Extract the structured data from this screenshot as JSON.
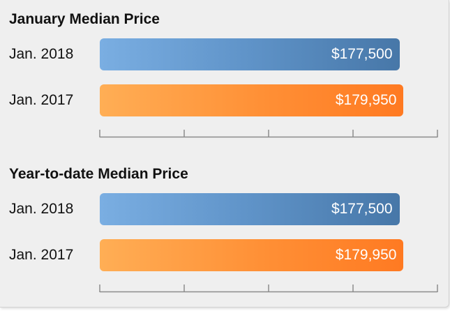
{
  "chart_data": [
    {
      "type": "bar",
      "orientation": "horizontal",
      "title": "January Median Price",
      "categories": [
        "Jan. 2018",
        "Jan. 2017"
      ],
      "values": [
        177500,
        179950
      ],
      "value_labels": [
        "$177,500",
        "$179,950"
      ],
      "xlim": [
        0,
        200000
      ],
      "tick_count": 5,
      "grid": false,
      "colors": [
        "#5f93c8",
        "#ff8f35"
      ]
    },
    {
      "type": "bar",
      "orientation": "horizontal",
      "title": "Year-to-date Median Price",
      "categories": [
        "Jan. 2018",
        "Jan. 2017"
      ],
      "values": [
        177500,
        179950
      ],
      "value_labels": [
        "$177,500",
        "$179,950"
      ],
      "xlim": [
        0,
        200000
      ],
      "tick_count": 5,
      "grid": false,
      "colors": [
        "#5f93c8",
        "#ff8f35"
      ]
    }
  ]
}
